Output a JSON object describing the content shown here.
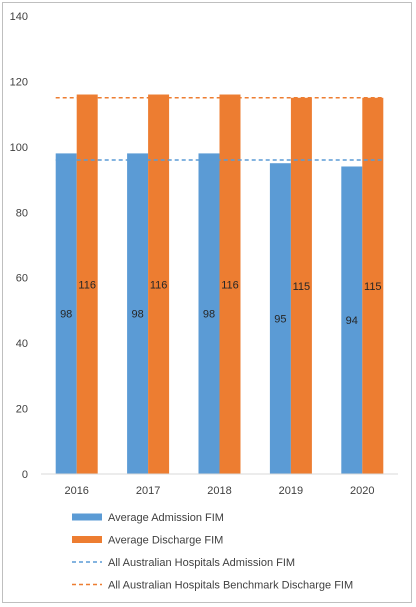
{
  "chart_data": {
    "type": "bar",
    "categories": [
      "2016",
      "2017",
      "2018",
      "2019",
      "2020"
    ],
    "series": [
      {
        "name": "Average Admission FIM",
        "values": [
          98,
          98,
          98,
          95,
          94
        ],
        "color": "#5b9bd5"
      },
      {
        "name": "Average Discharge FIM",
        "values": [
          116,
          116,
          116,
          115,
          115
        ],
        "color": "#ed7d31"
      }
    ],
    "reference_lines": [
      {
        "name": "All Australian Hospitals Admission FIM",
        "value": 96,
        "color": "#5b9bd5",
        "style": "dashed"
      },
      {
        "name": "All Australian Hospitals Benchmark Discharge FIM",
        "value": 115,
        "color": "#ed7d31",
        "style": "dashed"
      }
    ],
    "ylim": [
      0,
      140
    ],
    "yticks": [
      "0",
      "20",
      "40",
      "60",
      "80",
      "100",
      "120",
      "140"
    ],
    "grid": false,
    "legend_position": "bottom",
    "title": "",
    "xlabel": "",
    "ylabel": ""
  }
}
